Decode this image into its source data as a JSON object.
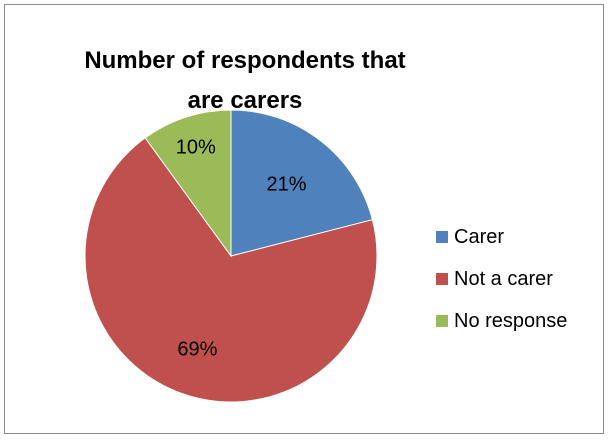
{
  "chart_data": {
    "type": "pie",
    "title": "Number of respondents that are carers",
    "categories": [
      "Carer",
      "Not a carer",
      "No response"
    ],
    "values": [
      21,
      69,
      10
    ],
    "labels": [
      "21%",
      "69%",
      "10%"
    ],
    "colors": [
      "#4f81bd",
      "#c0504d",
      "#9bbb59"
    ],
    "legend_position": "right",
    "start_angle_deg": 0,
    "direction": "clockwise"
  }
}
